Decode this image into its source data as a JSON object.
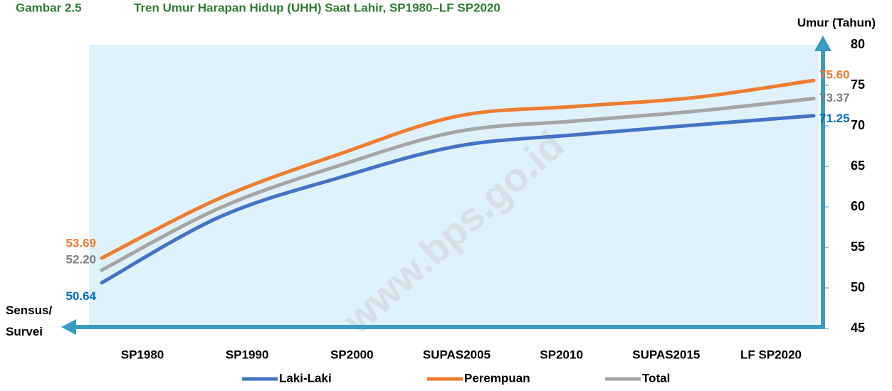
{
  "chart_data": {
    "type": "line",
    "figure_label": "Gambar 2.5",
    "title": "Tren Umur Harapan Hidup (UHH) Saat Lahir, SP1980–LF SP2020",
    "y_axis_label": "Umur (Tahun)",
    "x_axis_label": "Sensus/ Survei",
    "watermark": "www.bps.go.id",
    "categories": [
      "SP1980",
      "SP1990",
      "SP2000",
      "SUPAS2005",
      "SP2010",
      "SUPAS2015",
      "LF SP2020"
    ],
    "series": [
      {
        "name": "Laki-Laki",
        "color": "#4472c4",
        "label_color": "#0070c0",
        "values": [
          50.64,
          58.8,
          63.6,
          67.5,
          68.9,
          70.1,
          71.25
        ],
        "value_labels": [
          "50.64",
          null,
          null,
          null,
          null,
          null,
          "71.25"
        ]
      },
      {
        "name": "Perempuan",
        "color": "#ed7d31",
        "label_color": "#ed7d31",
        "values": [
          53.69,
          61.1,
          66.5,
          71.2,
          72.4,
          73.5,
          75.6
        ],
        "value_labels": [
          "53.69",
          null,
          null,
          null,
          null,
          null,
          "75.60"
        ]
      },
      {
        "name": "Total",
        "color": "#a5a5a5",
        "label_color": "#7f7f7f",
        "values": [
          52.2,
          59.9,
          65.1,
          69.3,
          70.6,
          71.8,
          73.37
        ],
        "value_labels": [
          "52.20",
          null,
          null,
          null,
          null,
          null,
          "73.37"
        ]
      }
    ],
    "ylim": [
      45,
      80
    ],
    "yticks": [
      45,
      50,
      55,
      60,
      65,
      70,
      75,
      80
    ],
    "y_axis_side": "right",
    "grid": false,
    "legend": "bottom",
    "plot_background": "#dff1fb",
    "axis_color": "#3b9ac0"
  }
}
